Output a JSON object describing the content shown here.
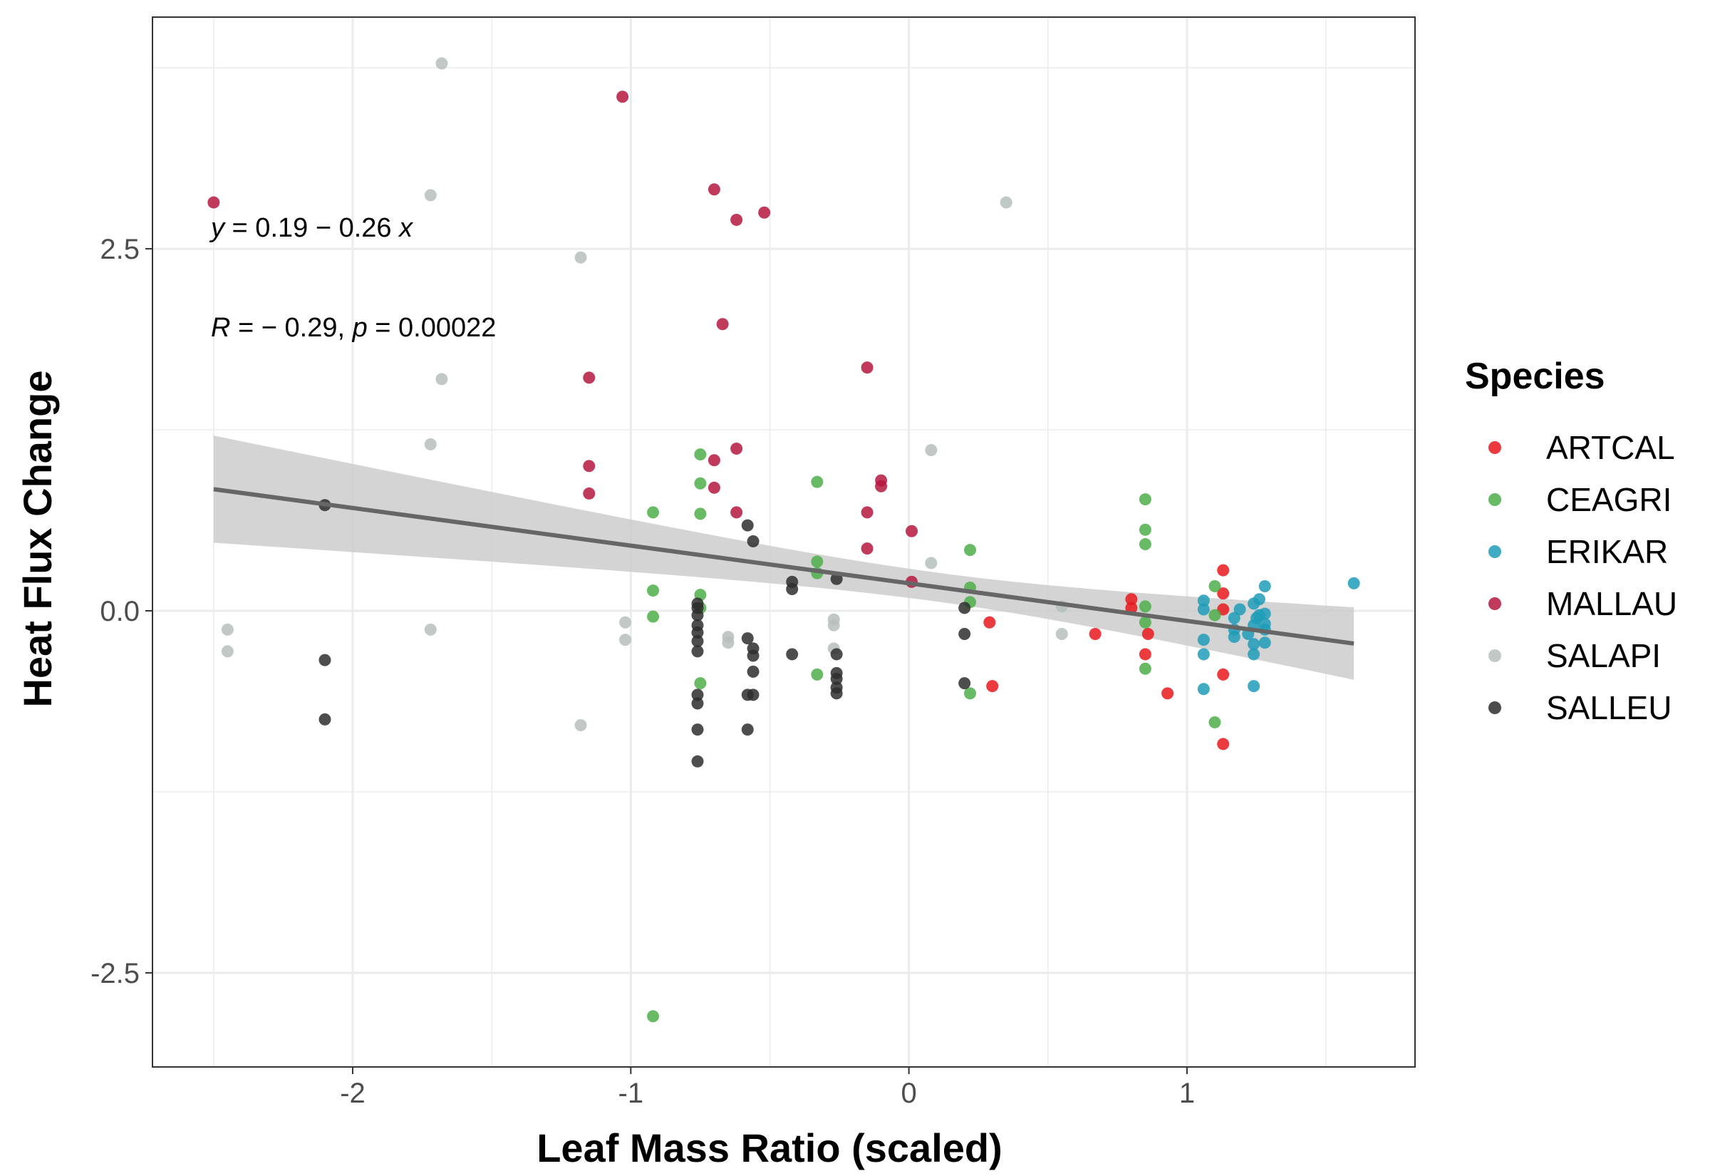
{
  "chart_data": {
    "type": "scatter",
    "title": "",
    "xlabel": "Leaf Mass Ratio (scaled)",
    "ylabel": "Heat Flux Change",
    "xlim": [
      -2.72,
      1.82
    ],
    "ylim": [
      -3.15,
      4.1
    ],
    "x_ticks": [
      -2,
      -1,
      0,
      1
    ],
    "x_tick_labels": [
      "-2",
      "-1",
      "0",
      "1"
    ],
    "y_ticks": [
      -2.5,
      0,
      2.5
    ],
    "y_tick_labels": [
      "-2.5",
      "0.0",
      "2.5"
    ],
    "grid": true,
    "legend": {
      "title": "Species",
      "placement": "right"
    },
    "annotations": {
      "equation": {
        "y": "y",
        "eq": " = 0.19 − 0.26 ",
        "x": "x"
      },
      "stats": {
        "r": "R",
        "r_val": " = − 0.29, ",
        "p": "p",
        "p_val": " = 0.00022"
      }
    },
    "regression": {
      "intercept": 0.19,
      "slope": -0.26,
      "x_range": [
        -2.5,
        1.6
      ],
      "ci_lower_at_start": 0.48,
      "ci_upper_at_start": 1.22,
      "ci_lower_at_end": -0.48,
      "ci_upper_at_end": 0.02,
      "line_color": "#666666",
      "band_color": "#cccccc"
    },
    "series": [
      {
        "name": "ARTCAL",
        "color": "#e8191c",
        "points": [
          [
            0.29,
            -0.08
          ],
          [
            0.67,
            -0.16
          ],
          [
            0.8,
            0.08
          ],
          [
            0.8,
            0.02
          ],
          [
            0.85,
            -0.3
          ],
          [
            0.86,
            -0.16
          ],
          [
            0.93,
            -0.57
          ],
          [
            1.13,
            0.28
          ],
          [
            1.13,
            0.12
          ],
          [
            1.13,
            0.01
          ],
          [
            1.13,
            -0.44
          ],
          [
            1.13,
            -0.92
          ],
          [
            0.3,
            -0.52
          ]
        ]
      },
      {
        "name": "CEAGRI",
        "color": "#4dae4a",
        "points": [
          [
            -0.92,
            0.68
          ],
          [
            -0.92,
            0.14
          ],
          [
            -0.92,
            -0.04
          ],
          [
            -0.92,
            -2.8
          ],
          [
            -0.75,
            1.08
          ],
          [
            -0.75,
            0.88
          ],
          [
            -0.75,
            0.67
          ],
          [
            -0.75,
            0.11
          ],
          [
            -0.75,
            0.02
          ],
          [
            -0.75,
            -0.5
          ],
          [
            -0.33,
            0.89
          ],
          [
            -0.33,
            0.34
          ],
          [
            -0.33,
            0.26
          ],
          [
            -0.33,
            -0.44
          ],
          [
            0.22,
            0.42
          ],
          [
            0.22,
            0.16
          ],
          [
            0.22,
            0.06
          ],
          [
            0.22,
            -0.57
          ],
          [
            0.85,
            0.77
          ],
          [
            0.85,
            0.56
          ],
          [
            0.85,
            0.46
          ],
          [
            0.85,
            0.03
          ],
          [
            0.85,
            -0.08
          ],
          [
            0.85,
            -0.4
          ],
          [
            1.1,
            0.17
          ],
          [
            1.1,
            -0.03
          ],
          [
            1.1,
            -0.77
          ]
        ]
      },
      {
        "name": "ERIKAR",
        "color": "#1f9cb7",
        "points": [
          [
            1.06,
            0.07
          ],
          [
            1.06,
            0.01
          ],
          [
            1.06,
            -0.2
          ],
          [
            1.06,
            -0.3
          ],
          [
            1.06,
            -0.54
          ],
          [
            1.17,
            -0.05
          ],
          [
            1.17,
            -0.13
          ],
          [
            1.17,
            -0.18
          ],
          [
            1.24,
            0.05
          ],
          [
            1.24,
            -0.1
          ],
          [
            1.24,
            -0.23
          ],
          [
            1.24,
            -0.3
          ],
          [
            1.24,
            -0.52
          ],
          [
            1.26,
            0.08
          ],
          [
            1.26,
            -0.03
          ],
          [
            1.28,
            0.17
          ],
          [
            1.28,
            -0.02
          ],
          [
            1.28,
            -0.09
          ],
          [
            1.28,
            -0.13
          ],
          [
            1.28,
            -0.22
          ],
          [
            1.6,
            0.19
          ],
          [
            1.19,
            0.01
          ],
          [
            1.22,
            -0.16
          ],
          [
            1.25,
            -0.05
          ]
        ]
      },
      {
        "name": "MALLAU",
        "color": "#b5173f",
        "points": [
          [
            -2.5,
            2.82
          ],
          [
            -1.15,
            1.61
          ],
          [
            -1.15,
            1.0
          ],
          [
            -1.15,
            0.81
          ],
          [
            -1.03,
            3.55
          ],
          [
            -0.7,
            2.91
          ],
          [
            -0.7,
            1.04
          ],
          [
            -0.7,
            0.85
          ],
          [
            -0.67,
            1.98
          ],
          [
            -0.62,
            2.7
          ],
          [
            -0.62,
            1.12
          ],
          [
            -0.62,
            0.68
          ],
          [
            -0.52,
            2.75
          ],
          [
            -0.15,
            1.68
          ],
          [
            -0.15,
            0.68
          ],
          [
            -0.15,
            0.43
          ],
          [
            -0.1,
            0.9
          ],
          [
            -0.1,
            0.86
          ],
          [
            0.01,
            0.55
          ],
          [
            0.01,
            0.2
          ]
        ]
      },
      {
        "name": "SALAPI",
        "color": "#b6bfbd",
        "points": [
          [
            -2.45,
            -0.13
          ],
          [
            -2.45,
            -0.28
          ],
          [
            -1.72,
            2.87
          ],
          [
            -1.72,
            1.15
          ],
          [
            -1.72,
            -0.13
          ],
          [
            -1.68,
            3.78
          ],
          [
            -1.68,
            1.6
          ],
          [
            -1.18,
            2.44
          ],
          [
            -1.18,
            -0.79
          ],
          [
            -1.02,
            -0.08
          ],
          [
            -1.02,
            -0.2
          ],
          [
            -0.65,
            -0.18
          ],
          [
            -0.65,
            -0.22
          ],
          [
            -0.27,
            -0.06
          ],
          [
            -0.27,
            -0.1
          ],
          [
            -0.27,
            -0.26
          ],
          [
            0.08,
            1.11
          ],
          [
            0.08,
            0.33
          ],
          [
            0.35,
            2.82
          ],
          [
            0.55,
            -0.16
          ],
          [
            0.55,
            0.03
          ]
        ]
      },
      {
        "name": "SALLEU",
        "color": "#2e2e2e",
        "points": [
          [
            -2.1,
            0.73
          ],
          [
            -2.1,
            -0.34
          ],
          [
            -2.1,
            -0.75
          ],
          [
            -0.76,
            0.05
          ],
          [
            -0.76,
            0.02
          ],
          [
            -0.76,
            -0.03
          ],
          [
            -0.76,
            -0.1
          ],
          [
            -0.76,
            -0.15
          ],
          [
            -0.76,
            -0.21
          ],
          [
            -0.76,
            -0.28
          ],
          [
            -0.76,
            -0.58
          ],
          [
            -0.76,
            -0.64
          ],
          [
            -0.76,
            -0.82
          ],
          [
            -0.76,
            -1.04
          ],
          [
            -0.58,
            0.59
          ],
          [
            -0.56,
            0.48
          ],
          [
            -0.58,
            -0.19
          ],
          [
            -0.56,
            -0.26
          ],
          [
            -0.56,
            -0.31
          ],
          [
            -0.56,
            -0.42
          ],
          [
            -0.58,
            -0.58
          ],
          [
            -0.56,
            -0.58
          ],
          [
            -0.58,
            -0.82
          ],
          [
            -0.42,
            0.2
          ],
          [
            -0.42,
            0.15
          ],
          [
            -0.42,
            -0.3
          ],
          [
            -0.26,
            0.22
          ],
          [
            -0.26,
            -0.3
          ],
          [
            -0.26,
            -0.43
          ],
          [
            -0.26,
            -0.47
          ],
          [
            -0.26,
            -0.53
          ],
          [
            -0.26,
            -0.57
          ],
          [
            0.2,
            0.02
          ],
          [
            0.2,
            -0.16
          ],
          [
            0.2,
            -0.5
          ]
        ]
      }
    ]
  }
}
